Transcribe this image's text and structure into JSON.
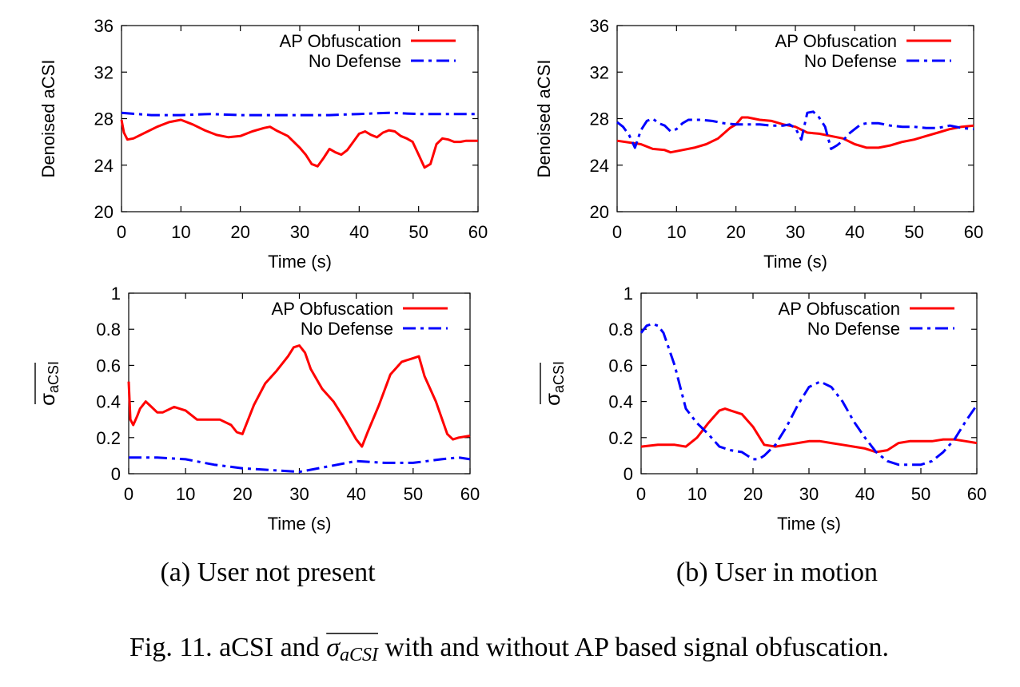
{
  "figure": {
    "caption_prefix": "Fig. 11.",
    "caption_text_1": "aCSI and",
    "caption_math": "σ",
    "caption_math_sub": "aCSI",
    "caption_text_2": "with and without AP based signal obfuscation."
  },
  "subcaptions": {
    "a": "(a)  User not present",
    "b": "(b)  User in motion"
  },
  "colors": {
    "ap_obfuscation": "#ff0000",
    "no_defense": "#0000ff"
  },
  "chart_data": [
    {
      "id": "a-top",
      "type": "line",
      "xlabel": "Time (s)",
      "ylabel": "Denoised aCSI",
      "xlim": [
        0,
        60
      ],
      "ylim": [
        20,
        36
      ],
      "xticks": [
        0,
        10,
        20,
        30,
        40,
        50,
        60
      ],
      "yticks": [
        20,
        24,
        28,
        32,
        36
      ],
      "legend_position": "top-right",
      "series": [
        {
          "name": "AP Obfuscation",
          "style": "solid",
          "color": "#ff0000",
          "x": [
            0,
            0.4,
            1,
            2,
            4,
            6,
            8,
            10,
            12,
            14,
            16,
            18,
            20,
            22,
            24,
            25,
            26,
            28,
            30,
            31,
            32,
            33,
            34,
            35,
            36,
            37,
            38,
            39,
            40,
            41,
            42,
            43,
            44,
            45,
            46,
            47,
            48,
            49,
            50,
            51,
            52,
            53,
            54,
            55,
            56,
            57,
            58,
            59,
            60
          ],
          "values": [
            27.9,
            26.8,
            26.2,
            26.3,
            26.8,
            27.3,
            27.7,
            27.9,
            27.5,
            27.0,
            26.6,
            26.4,
            26.5,
            26.9,
            27.2,
            27.3,
            27.0,
            26.5,
            25.5,
            24.9,
            24.1,
            23.9,
            24.6,
            25.4,
            25.1,
            24.9,
            25.3,
            26.0,
            26.7,
            26.9,
            26.6,
            26.4,
            26.8,
            27.0,
            26.9,
            26.5,
            26.3,
            26.0,
            24.9,
            23.8,
            24.1,
            25.8,
            26.3,
            26.2,
            26.0,
            26.0,
            26.1,
            26.1,
            26.1
          ]
        },
        {
          "name": "No Defense",
          "style": "dashdot",
          "color": "#0000ff",
          "x": [
            0,
            5,
            10,
            15,
            20,
            25,
            30,
            35,
            40,
            45,
            50,
            55,
            60
          ],
          "values": [
            28.5,
            28.3,
            28.3,
            28.4,
            28.3,
            28.3,
            28.3,
            28.3,
            28.4,
            28.5,
            28.4,
            28.4,
            28.4
          ]
        }
      ]
    },
    {
      "id": "b-top",
      "type": "line",
      "xlabel": "Time (s)",
      "ylabel": "Denoised aCSI",
      "xlim": [
        0,
        60
      ],
      "ylim": [
        20,
        36
      ],
      "xticks": [
        0,
        10,
        20,
        30,
        40,
        50,
        60
      ],
      "yticks": [
        20,
        24,
        28,
        32,
        36
      ],
      "legend_position": "top-right",
      "series": [
        {
          "name": "AP Obfuscation",
          "style": "solid",
          "color": "#ff0000",
          "x": [
            0,
            4,
            6,
            8,
            9,
            11,
            13,
            15,
            17,
            19,
            20,
            21,
            22,
            24,
            26,
            28,
            30,
            32,
            34,
            36,
            38,
            40,
            42,
            44,
            46,
            48,
            50,
            52,
            54,
            56,
            58,
            60
          ],
          "values": [
            26.1,
            25.8,
            25.4,
            25.3,
            25.1,
            25.3,
            25.5,
            25.8,
            26.3,
            27.2,
            27.5,
            28.1,
            28.1,
            27.9,
            27.8,
            27.5,
            27.3,
            26.8,
            26.7,
            26.5,
            26.3,
            25.8,
            25.5,
            25.5,
            25.7,
            26.0,
            26.2,
            26.5,
            26.8,
            27.1,
            27.3,
            27.4
          ]
        },
        {
          "name": "No Defense",
          "style": "dashdot",
          "color": "#0000ff",
          "x": [
            0,
            1,
            2,
            3,
            4,
            5,
            6,
            7,
            8,
            9,
            10,
            11,
            12,
            14,
            16,
            18,
            20,
            22,
            24,
            26,
            28,
            29,
            30,
            31,
            32,
            33,
            34,
            35,
            36,
            37,
            38,
            39,
            40,
            41,
            42,
            44,
            46,
            48,
            50,
            52,
            54,
            56,
            58,
            60
          ],
          "values": [
            27.7,
            27.3,
            26.6,
            25.5,
            27.0,
            27.8,
            28.0,
            27.6,
            27.4,
            26.9,
            27.1,
            27.6,
            27.9,
            27.9,
            27.8,
            27.6,
            27.5,
            27.5,
            27.5,
            27.4,
            27.4,
            27.5,
            27.2,
            26.2,
            28.5,
            28.6,
            28.1,
            27.3,
            25.4,
            25.7,
            26.1,
            26.7,
            27.1,
            27.5,
            27.6,
            27.6,
            27.4,
            27.3,
            27.3,
            27.2,
            27.2,
            27.4,
            27.2,
            27.1
          ]
        }
      ]
    },
    {
      "id": "a-bottom",
      "type": "line",
      "xlabel": "Time (s)",
      "ylabel": "σaCSI",
      "xlim": [
        0,
        60
      ],
      "ylim": [
        0,
        1
      ],
      "xticks": [
        0,
        10,
        20,
        30,
        40,
        50,
        60
      ],
      "yticks": [
        0,
        0.2,
        0.4,
        0.6,
        0.8,
        1
      ],
      "legend_position": "top-right",
      "series": [
        {
          "name": "AP Obfuscation",
          "style": "solid",
          "color": "#ff0000",
          "x": [
            0,
            0.3,
            0.8,
            1.5,
            2,
            3,
            4,
            5,
            6,
            8,
            10,
            12,
            14,
            16,
            18,
            19,
            20,
            22,
            24,
            26,
            28,
            29,
            30,
            31,
            32,
            34,
            36,
            38,
            40,
            41,
            42,
            44,
            46,
            48,
            50,
            51,
            52,
            54,
            56,
            57,
            58,
            60
          ],
          "values": [
            0.51,
            0.3,
            0.27,
            0.32,
            0.36,
            0.4,
            0.37,
            0.34,
            0.34,
            0.37,
            0.35,
            0.3,
            0.3,
            0.3,
            0.27,
            0.23,
            0.22,
            0.38,
            0.5,
            0.57,
            0.65,
            0.7,
            0.71,
            0.67,
            0.58,
            0.47,
            0.4,
            0.3,
            0.19,
            0.15,
            0.23,
            0.38,
            0.55,
            0.62,
            0.64,
            0.65,
            0.54,
            0.4,
            0.22,
            0.19,
            0.2,
            0.21
          ]
        },
        {
          "name": "No Defense",
          "style": "dashdot",
          "color": "#0000ff",
          "x": [
            0,
            5,
            10,
            15,
            20,
            25,
            30,
            35,
            40,
            45,
            50,
            55,
            58,
            60
          ],
          "values": [
            0.09,
            0.09,
            0.08,
            0.05,
            0.03,
            0.02,
            0.01,
            0.04,
            0.07,
            0.06,
            0.06,
            0.08,
            0.09,
            0.08
          ]
        }
      ]
    },
    {
      "id": "b-bottom",
      "type": "line",
      "xlabel": "Time (s)",
      "ylabel": "σaCSI",
      "xlim": [
        0,
        60
      ],
      "ylim": [
        0,
        1
      ],
      "xticks": [
        0,
        10,
        20,
        30,
        40,
        50,
        60
      ],
      "yticks": [
        0,
        0.2,
        0.4,
        0.6,
        0.8,
        1
      ],
      "legend_position": "top-right",
      "series": [
        {
          "name": "AP Obfuscation",
          "style": "solid",
          "color": "#ff0000",
          "x": [
            0,
            3,
            6,
            8,
            10,
            12,
            14,
            15,
            16,
            18,
            20,
            22,
            24,
            26,
            28,
            30,
            32,
            34,
            36,
            38,
            40,
            42,
            44,
            46,
            48,
            50,
            52,
            54,
            56,
            58,
            60
          ],
          "values": [
            0.15,
            0.16,
            0.16,
            0.15,
            0.2,
            0.28,
            0.35,
            0.36,
            0.35,
            0.33,
            0.26,
            0.16,
            0.15,
            0.16,
            0.17,
            0.18,
            0.18,
            0.17,
            0.16,
            0.15,
            0.14,
            0.12,
            0.13,
            0.17,
            0.18,
            0.18,
            0.18,
            0.19,
            0.19,
            0.18,
            0.17
          ]
        },
        {
          "name": "No Defense",
          "style": "dashdot",
          "color": "#0000ff",
          "x": [
            0,
            1,
            2,
            3,
            4,
            6,
            8,
            10,
            12,
            14,
            16,
            18,
            20,
            21,
            22,
            24,
            26,
            28,
            30,
            32,
            34,
            36,
            38,
            40,
            42,
            44,
            46,
            48,
            50,
            52,
            54,
            56,
            58,
            60
          ],
          "values": [
            0.78,
            0.82,
            0.83,
            0.82,
            0.78,
            0.6,
            0.36,
            0.28,
            0.22,
            0.15,
            0.13,
            0.12,
            0.08,
            0.08,
            0.1,
            0.16,
            0.26,
            0.38,
            0.48,
            0.51,
            0.48,
            0.4,
            0.29,
            0.2,
            0.12,
            0.07,
            0.05,
            0.05,
            0.05,
            0.07,
            0.12,
            0.19,
            0.29,
            0.38
          ]
        }
      ]
    }
  ]
}
